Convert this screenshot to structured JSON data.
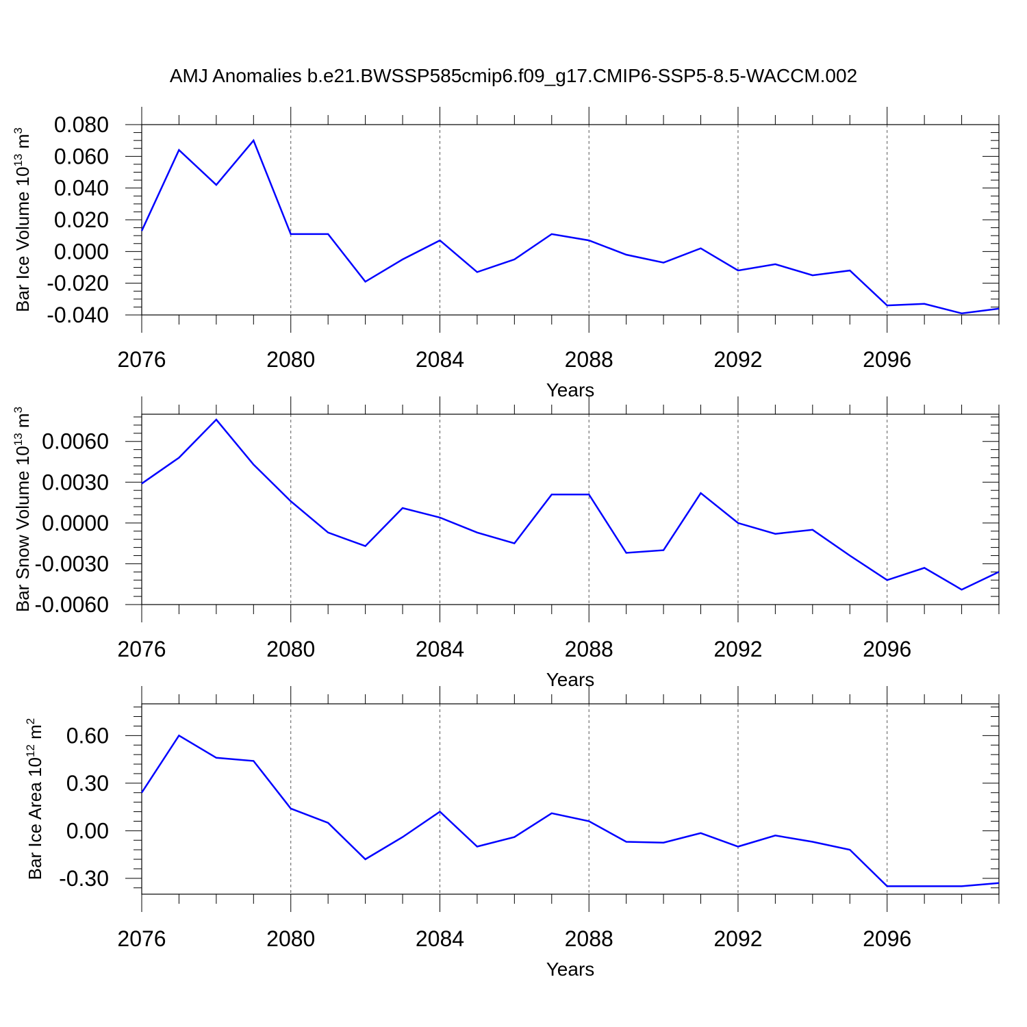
{
  "title": "AMJ Anomalies b.e21.BWSSP585cmip6.f09_g17.CMIP6-SSP5-8.5-WACCM.002",
  "colors": {
    "line": "#0000ff",
    "frame": "#000000",
    "grid": "#555555"
  },
  "chart_data": [
    {
      "type": "line",
      "ylabel": {
        "base": "Bar Ice Volume 10",
        "exp": "13",
        "unit": " m",
        "unit_exp": "3"
      },
      "xlabel": "Years",
      "x": [
        2076,
        2077,
        2078,
        2079,
        2080,
        2081,
        2082,
        2083,
        2084,
        2085,
        2086,
        2087,
        2088,
        2089,
        2090,
        2091,
        2092,
        2093,
        2094,
        2095,
        2096,
        2097,
        2098,
        2099
      ],
      "series": [
        {
          "values": [
            0.013,
            0.064,
            0.042,
            0.07,
            0.011,
            0.011,
            -0.019,
            -0.005,
            0.007,
            -0.013,
            -0.005,
            0.011,
            0.007,
            -0.002,
            -0.007,
            0.002,
            -0.012,
            -0.008,
            -0.015,
            -0.012,
            -0.034,
            -0.033,
            -0.039,
            -0.036
          ]
        }
      ],
      "xlim": [
        2076,
        2099
      ],
      "ylim": [
        -0.04,
        0.08
      ],
      "x_ticks": [
        "2076",
        "2080",
        "2084",
        "2088",
        "2092",
        "2096"
      ],
      "x_tick_values": [
        2076,
        2080,
        2084,
        2088,
        2092,
        2096
      ],
      "y_ticks": [
        "0.080",
        "0.060",
        "0.040",
        "0.020",
        "0.000",
        "-0.020",
        "-0.040"
      ],
      "y_tick_values": [
        0.08,
        0.06,
        0.04,
        0.02,
        0.0,
        -0.02,
        -0.04
      ],
      "y_minor_step": 0.005,
      "grid": "vertical dashed at major x ticks"
    },
    {
      "type": "line",
      "ylabel": {
        "base": "Bar Snow Volume 10",
        "exp": "13",
        "unit": " m",
        "unit_exp": "3"
      },
      "xlabel": "Years",
      "x": [
        2076,
        2077,
        2078,
        2079,
        2080,
        2081,
        2082,
        2083,
        2084,
        2085,
        2086,
        2087,
        2088,
        2089,
        2090,
        2091,
        2092,
        2093,
        2094,
        2095,
        2096,
        2097,
        2098,
        2099
      ],
      "series": [
        {
          "values": [
            0.0029,
            0.0048,
            0.0076,
            0.0043,
            0.0016,
            -0.0007,
            -0.0017,
            0.0011,
            0.0004,
            -0.0007,
            -0.0015,
            0.0021,
            0.0021,
            -0.0022,
            -0.002,
            0.0022,
            0.0,
            -0.0008,
            -0.0005,
            -0.0024,
            -0.0042,
            -0.0033,
            -0.0049,
            -0.0036
          ]
        }
      ],
      "xlim": [
        2076,
        2099
      ],
      "ylim": [
        -0.006,
        0.008
      ],
      "x_ticks": [
        "2076",
        "2080",
        "2084",
        "2088",
        "2092",
        "2096"
      ],
      "x_tick_values": [
        2076,
        2080,
        2084,
        2088,
        2092,
        2096
      ],
      "y_ticks": [
        "0.0060",
        "0.0030",
        "0.0000",
        "-0.0030",
        "-0.0060"
      ],
      "y_tick_values": [
        0.006,
        0.003,
        0.0,
        -0.003,
        -0.006
      ],
      "y_minor_step": 0.0006,
      "grid": "vertical dashed at major x ticks"
    },
    {
      "type": "line",
      "ylabel": {
        "base": "Bar Ice Area 10",
        "exp": "12",
        "unit": " m",
        "unit_exp": "2"
      },
      "xlabel": "Years",
      "x": [
        2076,
        2077,
        2078,
        2079,
        2080,
        2081,
        2082,
        2083,
        2084,
        2085,
        2086,
        2087,
        2088,
        2089,
        2090,
        2091,
        2092,
        2093,
        2094,
        2095,
        2096,
        2097,
        2098,
        2099
      ],
      "series": [
        {
          "values": [
            0.24,
            0.6,
            0.46,
            0.44,
            0.14,
            0.05,
            -0.18,
            -0.04,
            0.12,
            -0.1,
            -0.04,
            0.11,
            0.06,
            -0.07,
            -0.075,
            -0.015,
            -0.1,
            -0.03,
            -0.07,
            -0.12,
            -0.35,
            -0.35,
            -0.35,
            -0.33
          ]
        }
      ],
      "xlim": [
        2076,
        2099
      ],
      "ylim": [
        -0.4,
        0.8
      ],
      "x_ticks": [
        "2076",
        "2080",
        "2084",
        "2088",
        "2092",
        "2096"
      ],
      "x_tick_values": [
        2076,
        2080,
        2084,
        2088,
        2092,
        2096
      ],
      "y_ticks": [
        "0.60",
        "0.30",
        "0.00",
        "-0.30"
      ],
      "y_tick_values": [
        0.6,
        0.3,
        0.0,
        -0.3
      ],
      "y_minor_step": 0.06,
      "grid": "vertical dashed at major x ticks"
    }
  ]
}
